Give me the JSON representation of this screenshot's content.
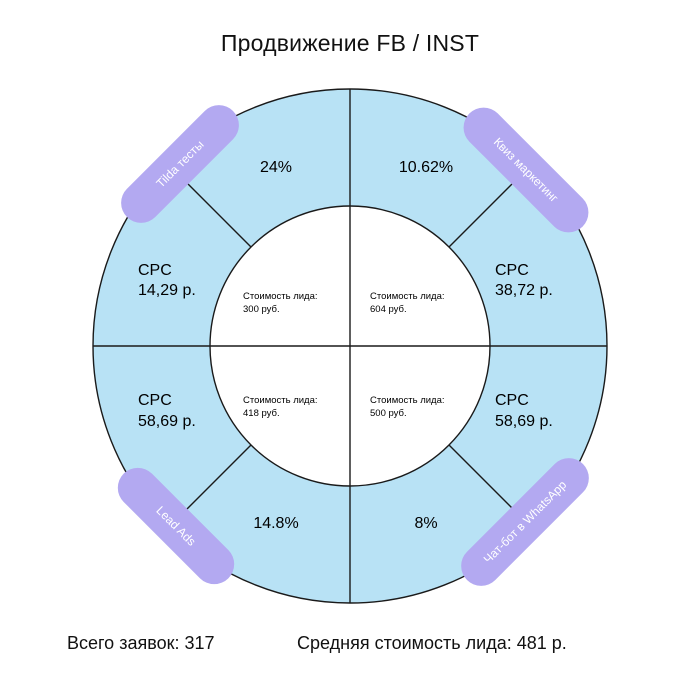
{
  "title": "Продвижение FB / INST",
  "colors": {
    "ring": "#b8e2f5",
    "center": "#ffffff",
    "stroke": "#1a1a1a",
    "tag": "#b3a9f1",
    "tag_text": "#ffffff"
  },
  "quadrants": [
    {
      "tag": "Tilda тесты",
      "percent": "24%",
      "cpc_label": "CPC",
      "cpc_value": "14,29 р.",
      "lead_label": "Стоимость лида:",
      "lead_value": "300 руб."
    },
    {
      "tag": "Квиз маркетинг",
      "percent": "10.62%",
      "cpc_label": "CPC",
      "cpc_value": "38,72 р.",
      "lead_label": "Стоимость лида:",
      "lead_value": "604 руб."
    },
    {
      "tag": "Lead Ads",
      "percent": "14.8%",
      "cpc_label": "CPC",
      "cpc_value": "58,69 р.",
      "lead_label": "Стоимость лида:",
      "lead_value": "418 руб."
    },
    {
      "tag": "Чат-бот в WhatsApp",
      "percent": "8%",
      "cpc_label": "CPC",
      "cpc_value": "58,69 р.",
      "lead_label": "Стоимость лида:",
      "lead_value": "500 руб."
    }
  ],
  "footer": {
    "total_leads": "Всего заявок: 317",
    "avg_cost": "Средняя стоимость лида: 481 р."
  }
}
